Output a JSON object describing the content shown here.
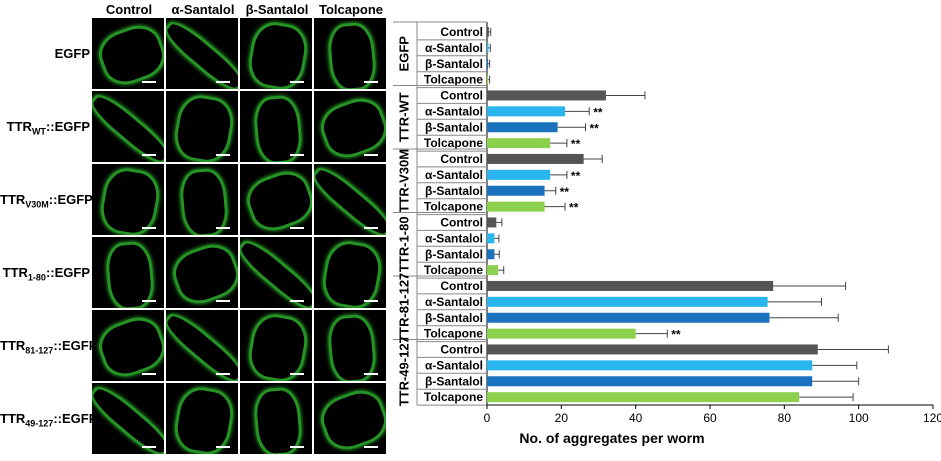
{
  "micrographs": {
    "columns": [
      "Control",
      "α-Santalol",
      "β-Santalol",
      "Tolcapone"
    ],
    "rows": [
      {
        "base": "EGFP",
        "sub": "",
        "suffix": ""
      },
      {
        "base": "TTR",
        "sub": "WT",
        "suffix": "::EGFP"
      },
      {
        "base": "TTR",
        "sub": "V30M",
        "suffix": "::EGFP"
      },
      {
        "base": "TTR",
        "sub": "1-80",
        "suffix": "::EGFP"
      },
      {
        "base": "TTR",
        "sub": "81-127",
        "suffix": "::EGFP"
      },
      {
        "base": "TTR",
        "sub": "49-127",
        "suffix": "::EGFP"
      }
    ]
  },
  "chart_data": {
    "type": "bar",
    "orientation": "horizontal",
    "xlabel": "No. of aggregates per worm",
    "xlim": [
      0,
      120
    ],
    "xticks": [
      0,
      20,
      40,
      60,
      80,
      100,
      120
    ],
    "colors": {
      "Control": "#555555",
      "α-Santalol": "#29b6ef",
      "β-Santalol": "#1a72bf",
      "Tolcapone": "#8cd14e"
    },
    "groups": [
      {
        "name": "EGFP",
        "bars": [
          {
            "label": "Control",
            "value": 0.5,
            "error": 0.5,
            "sig": ""
          },
          {
            "label": "α-Santalol",
            "value": 0.4,
            "error": 0.5,
            "sig": ""
          },
          {
            "label": "β-Santalol",
            "value": 0.3,
            "error": 0.4,
            "sig": ""
          },
          {
            "label": "Tolcapone",
            "value": 0.3,
            "error": 0.4,
            "sig": ""
          }
        ]
      },
      {
        "name": "TTR-WT",
        "bars": [
          {
            "label": "Control",
            "value": 32,
            "error": 10.5,
            "sig": ""
          },
          {
            "label": "α-Santalol",
            "value": 21,
            "error": 6.5,
            "sig": "**"
          },
          {
            "label": "β-Santalol",
            "value": 19,
            "error": 7.5,
            "sig": "**"
          },
          {
            "label": "Tolcapone",
            "value": 17,
            "error": 4.5,
            "sig": "**"
          }
        ]
      },
      {
        "name": "TTR-V30M",
        "bars": [
          {
            "label": "Control",
            "value": 26,
            "error": 5,
            "sig": ""
          },
          {
            "label": "α-Santalol",
            "value": 17,
            "error": 4.5,
            "sig": "**"
          },
          {
            "label": "β-Santalol",
            "value": 15.5,
            "error": 3,
            "sig": "**"
          },
          {
            "label": "Tolcapone",
            "value": 15.5,
            "error": 5.5,
            "sig": "**"
          }
        ]
      },
      {
        "name": "TTR-1-80",
        "bars": [
          {
            "label": "Control",
            "value": 2.5,
            "error": 1.5,
            "sig": ""
          },
          {
            "label": "α-Santalol",
            "value": 2,
            "error": 1.2,
            "sig": ""
          },
          {
            "label": "β-Santalol",
            "value": 2,
            "error": 1.3,
            "sig": ""
          },
          {
            "label": "Tolcapone",
            "value": 3,
            "error": 1.5,
            "sig": ""
          }
        ]
      },
      {
        "name": "TTR-81-127",
        "bars": [
          {
            "label": "Control",
            "value": 77,
            "error": 19.5,
            "sig": ""
          },
          {
            "label": "α-Santalol",
            "value": 75.5,
            "error": 14.5,
            "sig": ""
          },
          {
            "label": "β-Santalol",
            "value": 76,
            "error": 18.5,
            "sig": ""
          },
          {
            "label": "Tolcapone",
            "value": 40,
            "error": 8.5,
            "sig": "**"
          }
        ]
      },
      {
        "name": "TTR-49-127",
        "bars": [
          {
            "label": "Control",
            "value": 89,
            "error": 19,
            "sig": ""
          },
          {
            "label": "α-Santalol",
            "value": 87.5,
            "error": 12,
            "sig": ""
          },
          {
            "label": "β-Santalol",
            "value": 87.5,
            "error": 12.5,
            "sig": ""
          },
          {
            "label": "Tolcapone",
            "value": 84,
            "error": 14.5,
            "sig": ""
          }
        ]
      }
    ]
  }
}
